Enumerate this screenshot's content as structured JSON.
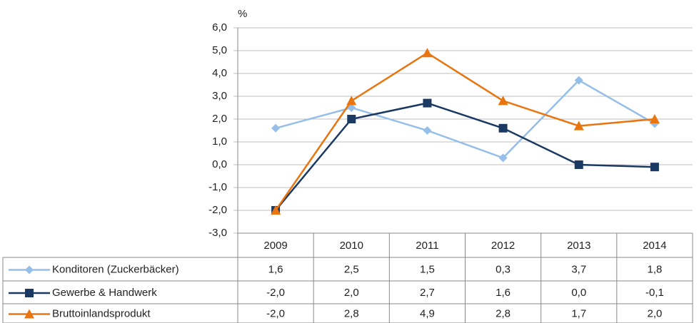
{
  "chart_data": {
    "type": "line",
    "y_label": "%",
    "categories": [
      "2009",
      "2010",
      "2011",
      "2012",
      "2013",
      "2014"
    ],
    "ylim": [
      -3,
      6
    ],
    "yticks": [
      {
        "value": -3,
        "label": "-3,0"
      },
      {
        "value": -2,
        "label": "-2,0"
      },
      {
        "value": -1,
        "label": "-1,0"
      },
      {
        "value": 0,
        "label": "0,0"
      },
      {
        "value": 1,
        "label": "1,0"
      },
      {
        "value": 2,
        "label": "2,0"
      },
      {
        "value": 3,
        "label": "3,0"
      },
      {
        "value": 4,
        "label": "4,0"
      },
      {
        "value": 5,
        "label": "5,0"
      },
      {
        "value": 6,
        "label": "6,0"
      }
    ],
    "grid": true,
    "series": [
      {
        "name": "Konditoren (Zuckerbäcker)",
        "color": "#95bfe8",
        "marker": "diamond",
        "values": [
          1.6,
          2.5,
          1.5,
          0.3,
          3.7,
          1.8
        ],
        "value_labels": [
          "1,6",
          "2,5",
          "1,5",
          "0,3",
          "3,7",
          "1,8"
        ]
      },
      {
        "name": "Gewerbe & Handwerk",
        "color": "#1b3a63",
        "marker": "square",
        "values": [
          -2.0,
          2.0,
          2.7,
          1.6,
          0.0,
          -0.1
        ],
        "value_labels": [
          "-2,0",
          "2,0",
          "2,7",
          "1,6",
          "0,0",
          "-0,1"
        ]
      },
      {
        "name": "Bruttoinlandsprodukt",
        "color": "#e8750f",
        "marker": "triangle",
        "values": [
          -2.0,
          2.8,
          4.9,
          2.8,
          1.7,
          2.0
        ],
        "value_labels": [
          "-2,0",
          "2,8",
          "4,9",
          "2,8",
          "1,7",
          "2,0"
        ]
      }
    ]
  }
}
